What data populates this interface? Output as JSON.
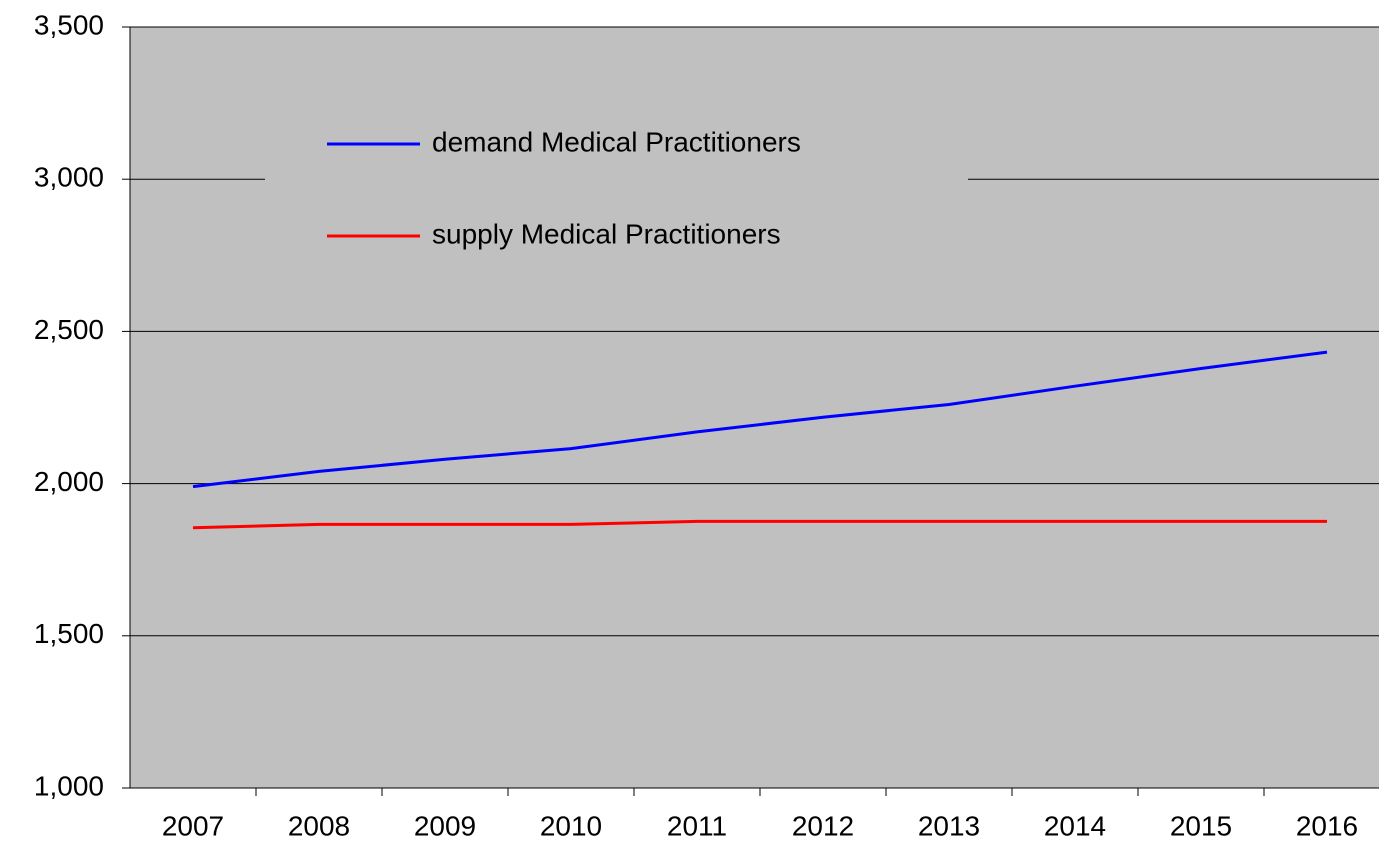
{
  "chart_data": {
    "type": "line",
    "categories": [
      "2007",
      "2008",
      "2009",
      "2010",
      "2011",
      "2012",
      "2013",
      "2014",
      "2015",
      "2016"
    ],
    "series": [
      {
        "name": "demand Medical Practitioners",
        "color": "#0000ff",
        "values": [
          1990,
          2040,
          2080,
          2115,
          2170,
          2218,
          2260,
          2320,
          2378,
          2432
        ]
      },
      {
        "name": "supply Medical Practitioners",
        "color": "#ff0000",
        "values": [
          1855,
          1866,
          1866,
          1866,
          1876,
          1876,
          1876,
          1876,
          1876,
          1876
        ]
      }
    ],
    "ylim": [
      1000,
      3500
    ],
    "yticks": [
      {
        "value": 1000,
        "label": "1,000"
      },
      {
        "value": 1500,
        "label": "1,500"
      },
      {
        "value": 2000,
        "label": "2,000"
      },
      {
        "value": 2500,
        "label": "2,500"
      },
      {
        "value": 3000,
        "label": "3,000"
      },
      {
        "value": 3500,
        "label": "3,500"
      }
    ],
    "grid": true
  }
}
